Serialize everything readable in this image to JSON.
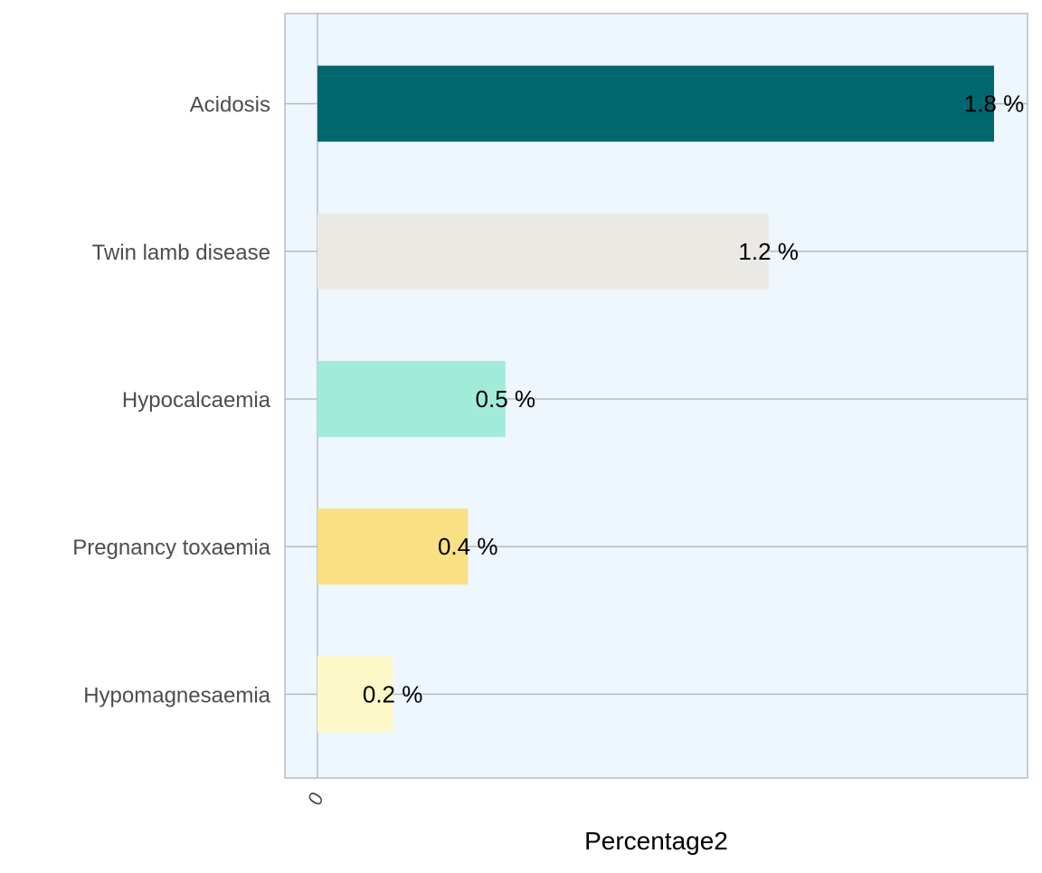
{
  "chart_data": {
    "type": "bar",
    "orientation": "horizontal",
    "categories": [
      "Acidosis",
      "Twin lamb disease",
      "Hypocalcaemia",
      "Pregnancy toxaemia",
      "Hypomagnesaemia"
    ],
    "values": [
      1.8,
      1.2,
      0.5,
      0.4,
      0.2
    ],
    "value_labels": [
      "1.8 %",
      "1.2 %",
      "0.5 %",
      "0.4 %",
      "0.2 %"
    ],
    "bar_colors": [
      "#01676f",
      "#ebe9e4",
      "#a1ecd8",
      "#f9e082",
      "#fdf8c8"
    ],
    "xlabel": "Percentage2",
    "ylabel": "",
    "title": "",
    "x_ticks": [
      {
        "value": 0,
        "label": "0"
      }
    ],
    "xlim": [
      0,
      1.9
    ],
    "grid": true,
    "legend": "none",
    "panel_background": "#eef6fe",
    "grid_color": "#b7bcc2"
  }
}
